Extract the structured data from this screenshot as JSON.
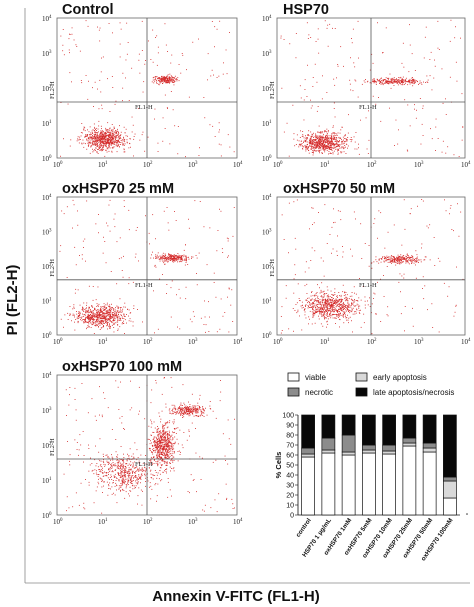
{
  "figure": {
    "y_axis_label": "PI (FL2-H)",
    "x_axis_label": "Annexin V-FITC (FL1-H)"
  },
  "flow_panels": [
    {
      "title": "Control",
      "xlabel": "FL1-H",
      "ylabel": "FL2-H"
    },
    {
      "title": "HSP70",
      "xlabel": "FL1-H",
      "ylabel": "FL2-H"
    },
    {
      "title": "oxHSP70 25 mM",
      "xlabel": "FL1-H",
      "ylabel": "FL2-H"
    },
    {
      "title": "oxHSP70 50 mM",
      "xlabel": "FL1-H",
      "ylabel": "FL2-H"
    },
    {
      "title": "oxHSP70 100 mM",
      "xlabel": "FL1-H",
      "ylabel": "FL2-H"
    }
  ],
  "tick_labels": {
    "mantissa": [
      "10",
      "10",
      "10",
      "10",
      "10"
    ],
    "exponents": [
      "0",
      "1",
      "2",
      "3",
      "4"
    ]
  },
  "dot_color": "#d42a2a",
  "gate_color": "#555555",
  "legend": {
    "viable": "viable",
    "early_apoptosis": "early apoptosis",
    "necrotic": "necrotic",
    "late_apoptosis": "late apoptosis/necrosis"
  },
  "chart_data": [
    {
      "type": "bar",
      "stacked": true,
      "ylabel": "% Cells",
      "ylim": [
        0,
        100
      ],
      "yticks": [
        "0",
        "10",
        "20",
        "30",
        "40",
        "50",
        "60",
        "70",
        "80",
        "90",
        "100"
      ],
      "categories": [
        "control",
        "HSP70 1 µg/mL",
        "oxHSP70 1mM",
        "oxHSP70 5mM",
        "oxHSP70 10mM",
        "oxHSP70 25mM",
        "oxHSP70 50mM",
        "oxHSP70 100mM"
      ],
      "series": [
        {
          "name": "viable",
          "color": "#ffffff",
          "values": [
            58,
            62,
            60,
            62,
            61,
            69,
            63,
            17
          ]
        },
        {
          "name": "early apoptosis",
          "color": "#d9d9d9",
          "values": [
            3,
            3,
            3,
            3,
            3,
            3,
            4,
            17
          ]
        },
        {
          "name": "necrotic",
          "color": "#8c8c8c",
          "values": [
            6,
            12,
            17,
            5,
            6,
            5,
            5,
            4
          ]
        },
        {
          "name": "late apoptosis/necrosis",
          "color": "#080808",
          "values": [
            33,
            23,
            20,
            30,
            30,
            23,
            28,
            62
          ]
        }
      ]
    }
  ]
}
